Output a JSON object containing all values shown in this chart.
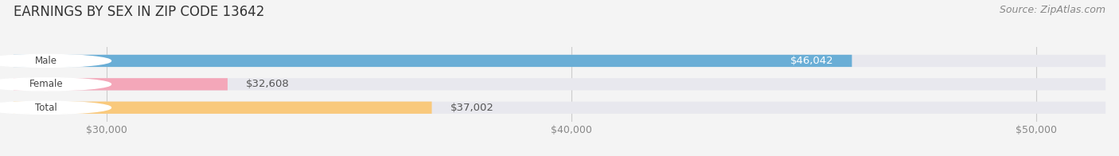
{
  "title": "EARNINGS BY SEX IN ZIP CODE 13642",
  "source": "Source: ZipAtlas.com",
  "categories": [
    "Male",
    "Female",
    "Total"
  ],
  "values": [
    46042,
    32608,
    37002
  ],
  "bar_colors": [
    "#6aaed6",
    "#f4a7b9",
    "#f9c97c"
  ],
  "bar_bg_color": "#e8e8ee",
  "label_inside": [
    true,
    false,
    false
  ],
  "x_min": 28000,
  "x_max": 51500,
  "tick_values": [
    30000,
    40000,
    50000
  ],
  "tick_labels": [
    "$30,000",
    "$40,000",
    "$50,000"
  ],
  "title_fontsize": 12,
  "bar_label_fontsize": 9.5,
  "tick_fontsize": 9,
  "source_fontsize": 9,
  "fig_bg_color": "#f4f4f4",
  "plot_bg_color": "#f4f4f4"
}
